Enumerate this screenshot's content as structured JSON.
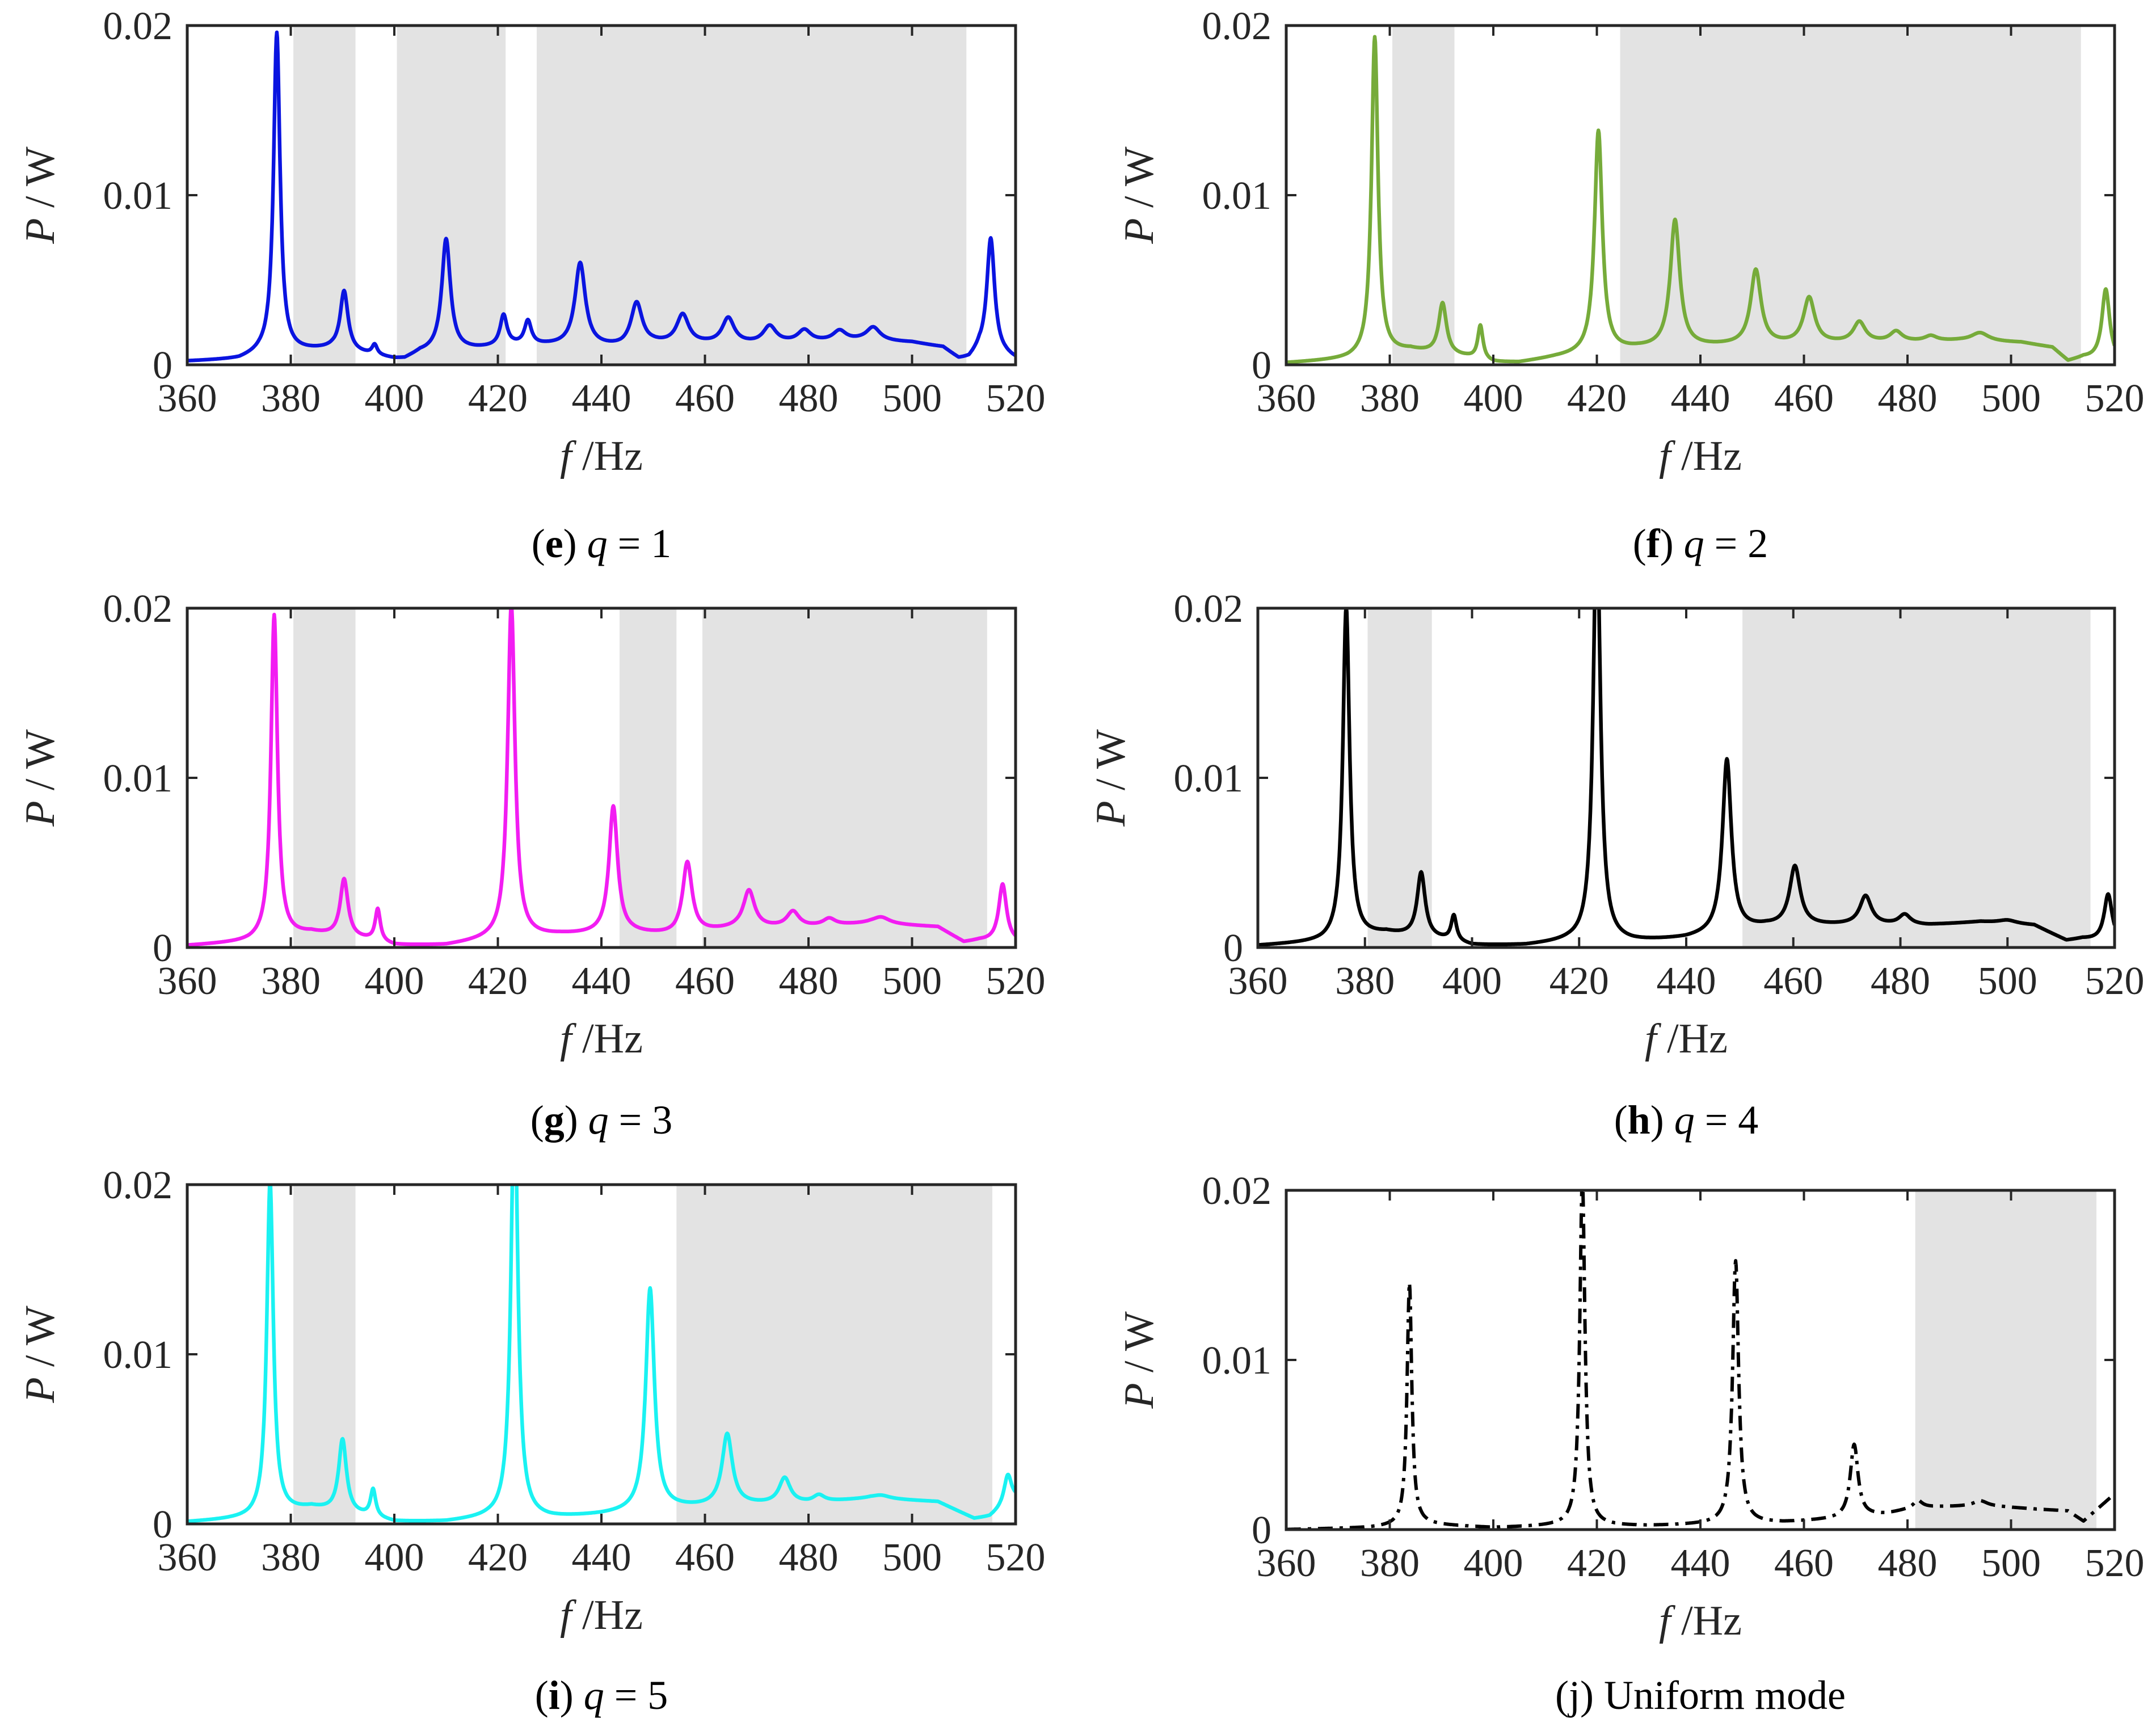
{
  "chart_data": [
    {
      "id": "e",
      "type": "line",
      "caption_letter": "(e)",
      "caption_var": "q",
      "caption_rest": " = 1",
      "color": "#0a14e0",
      "dash": "solid",
      "xlabel_var": "f",
      "xlabel_unit": " /Hz",
      "ylabel_var": "P",
      "ylabel_unit": " / W",
      "xlim": [
        360,
        520
      ],
      "ylim": [
        0,
        0.02
      ],
      "xticks": [
        360,
        380,
        400,
        420,
        440,
        460,
        480,
        500,
        520
      ],
      "xtick_labels": [
        "360",
        "380",
        "400",
        "420",
        "440",
        "460",
        "480",
        "500",
        "520"
      ],
      "yticks": [
        0,
        0.01,
        0.02
      ],
      "ytick_labels": [
        "0",
        "0.01",
        "0.02"
      ],
      "bandgaps": [
        [
          380.5,
          392.5
        ],
        [
          400.5,
          421.5
        ],
        [
          427.5,
          510.5
        ]
      ],
      "base": [
        [
          360,
          0.0002
        ],
        [
          370,
          0.0003
        ],
        [
          374,
          0.0006
        ],
        [
          388,
          0.0009
        ],
        [
          400,
          0.0003
        ],
        [
          402,
          0.0003
        ],
        [
          405,
          0.0007
        ],
        [
          416,
          0.0009
        ],
        [
          423,
          0.0011
        ],
        [
          430,
          0.0011
        ],
        [
          444,
          0.001
        ],
        [
          450,
          0.0012
        ],
        [
          460,
          0.0012
        ],
        [
          470,
          0.0012
        ],
        [
          480,
          0.0013
        ],
        [
          490,
          0.0014
        ],
        [
          500,
          0.0013
        ],
        [
          506,
          0.001
        ],
        [
          509,
          0.0003
        ],
        [
          511,
          0.0003
        ],
        [
          513,
          0.0008
        ],
        [
          518,
          0.0005
        ],
        [
          520,
          0.0003
        ]
      ],
      "peaks": [
        [
          377.3,
          0.0189,
          0.75
        ],
        [
          390.3,
          0.0035,
          0.9
        ],
        [
          396.2,
          0.0006,
          0.6
        ],
        [
          410,
          0.0066,
          1.0
        ],
        [
          421.1,
          0.0018,
          0.8
        ],
        [
          425.8,
          0.0014,
          0.8
        ],
        [
          435.9,
          0.0049,
          1.2
        ],
        [
          446.8,
          0.0025,
          1.3
        ],
        [
          455.7,
          0.0017,
          1.4
        ],
        [
          464.5,
          0.0015,
          1.4
        ],
        [
          472.5,
          0.001,
          1.5
        ],
        [
          479.2,
          0.0007,
          1.5
        ],
        [
          486,
          0.0006,
          1.5
        ],
        [
          492.5,
          0.0008,
          1.6
        ],
        [
          515.2,
          0.0068,
          0.9
        ]
      ]
    },
    {
      "id": "f",
      "type": "line",
      "caption_letter": "(f)",
      "caption_var": "q",
      "caption_rest": " = 2",
      "color": "#76ab3a",
      "dash": "solid",
      "xlabel_var": "f",
      "xlabel_unit": " /Hz",
      "ylabel_var": "P",
      "ylabel_unit": " / W",
      "xlim": [
        360,
        520
      ],
      "ylim": [
        0,
        0.02
      ],
      "xticks": [
        360,
        380,
        400,
        420,
        440,
        460,
        480,
        500,
        520
      ],
      "xtick_labels": [
        "360",
        "380",
        "400",
        "420",
        "440",
        "460",
        "480",
        "500",
        "520"
      ],
      "yticks": [
        0,
        0.01,
        0.02
      ],
      "ytick_labels": [
        "0",
        "0.01",
        "0.02"
      ],
      "bandgaps": [
        [
          380.5,
          392.5
        ],
        [
          424.5,
          513.5
        ]
      ],
      "base": [
        [
          360,
          0.0001
        ],
        [
          372,
          0.0003
        ],
        [
          384,
          0.0008
        ],
        [
          395,
          0.0004
        ],
        [
          400,
          0.0001
        ],
        [
          405,
          0.0001
        ],
        [
          412,
          0.0004
        ],
        [
          428,
          0.0009
        ],
        [
          445,
          0.0011
        ],
        [
          460,
          0.0012
        ],
        [
          475,
          0.0013
        ],
        [
          490,
          0.0014
        ],
        [
          502,
          0.0013
        ],
        [
          508,
          0.001
        ],
        [
          511,
          0.0002
        ],
        [
          514,
          0.0004
        ],
        [
          520,
          0.0002
        ]
      ],
      "peaks": [
        [
          377.1,
          0.0188,
          0.75
        ],
        [
          390.2,
          0.003,
          0.9
        ],
        [
          397.5,
          0.002,
          0.6
        ],
        [
          420.3,
          0.0131,
          0.9
        ],
        [
          435.1,
          0.0075,
          1.1
        ],
        [
          450.7,
          0.0044,
          1.2
        ],
        [
          461,
          0.0027,
          1.3
        ],
        [
          470.7,
          0.0012,
          1.4
        ],
        [
          477.8,
          0.0006,
          1.4
        ],
        [
          484.5,
          0.0003,
          1.4
        ],
        [
          494,
          0.0005,
          2.0
        ],
        [
          518.3,
          0.0042,
          0.9
        ]
      ]
    },
    {
      "id": "g",
      "type": "line",
      "caption_letter": "(g)",
      "caption_var": "q",
      "caption_rest": " = 3",
      "color": "#f21df2",
      "dash": "solid",
      "xlabel_var": "f",
      "xlabel_unit": " /Hz",
      "ylabel_var": "P",
      "ylabel_unit": " / W",
      "xlim": [
        360,
        520
      ],
      "ylim": [
        0,
        0.02
      ],
      "xticks": [
        360,
        380,
        400,
        420,
        440,
        460,
        480,
        500,
        520
      ],
      "xtick_labels": [
        "360",
        "380",
        "400",
        "420",
        "440",
        "460",
        "480",
        "500",
        "520"
      ],
      "yticks": [
        0,
        0.01,
        0.02
      ],
      "ytick_labels": [
        "0",
        "0.01",
        "0.02"
      ],
      "bandgaps": [
        [
          380.5,
          392.5
        ],
        [
          443.5,
          454.5
        ],
        [
          459.5,
          514.5
        ]
      ],
      "base": [
        [
          360,
          0.0001
        ],
        [
          372,
          0.0003
        ],
        [
          384,
          0.0008
        ],
        [
          395,
          0.0004
        ],
        [
          400,
          0.0001
        ],
        [
          410,
          0.0001
        ],
        [
          418,
          0.0004
        ],
        [
          432,
          0.0007
        ],
        [
          446,
          0.0008
        ],
        [
          454,
          0.0007
        ],
        [
          466,
          0.0011
        ],
        [
          480,
          0.0012
        ],
        [
          492,
          0.0014
        ],
        [
          505,
          0.0012
        ],
        [
          510,
          0.0003
        ],
        [
          513,
          0.0004
        ],
        [
          520,
          0.0003
        ]
      ],
      "peaks": [
        [
          376.8,
          0.0191,
          0.75
        ],
        [
          390.3,
          0.0034,
          0.9
        ],
        [
          396.8,
          0.0019,
          0.6
        ],
        [
          422.6,
          0.0197,
          0.85
        ],
        [
          442.3,
          0.0075,
          1.0
        ],
        [
          456.6,
          0.0042,
          1.1
        ],
        [
          468.5,
          0.0022,
          1.3
        ],
        [
          477,
          0.0009,
          1.4
        ],
        [
          484,
          0.0004,
          1.4
        ],
        [
          494,
          0.0004,
          2.0
        ],
        [
          517.5,
          0.0034,
          0.9
        ]
      ]
    },
    {
      "id": "h",
      "type": "line",
      "caption_letter": "(h)",
      "caption_var": "q",
      "caption_rest": " = 4",
      "color": "#000000",
      "dash": "solid",
      "xlabel_var": "f",
      "xlabel_unit": " /Hz",
      "ylabel_var": "P",
      "ylabel_unit": " / W",
      "xlim": [
        360,
        520
      ],
      "ylim": [
        0,
        0.02
      ],
      "xticks": [
        360,
        380,
        400,
        420,
        440,
        460,
        480,
        500,
        520
      ],
      "xtick_labels": [
        "360",
        "380",
        "400",
        "420",
        "440",
        "460",
        "480",
        "500",
        "520"
      ],
      "yticks": [
        0,
        0.01,
        0.02
      ],
      "ytick_labels": [
        "0",
        "0.01",
        "0.02"
      ],
      "bandgaps": [
        [
          380.5,
          392.5
        ],
        [
          450.5,
          515.5
        ]
      ],
      "base": [
        [
          360,
          0.0001
        ],
        [
          372,
          0.0003
        ],
        [
          384,
          0.0008
        ],
        [
          395,
          0.0004
        ],
        [
          400,
          0.0001
        ],
        [
          410,
          0.0001
        ],
        [
          418,
          0.0003
        ],
        [
          430,
          0.0003
        ],
        [
          440,
          0.0005
        ],
        [
          455,
          0.0012
        ],
        [
          470,
          0.0013
        ],
        [
          485,
          0.0013
        ],
        [
          495,
          0.0015
        ],
        [
          505,
          0.0013
        ],
        [
          511,
          0.0004
        ],
        [
          514,
          0.0005
        ],
        [
          520,
          0.0003
        ]
      ],
      "peaks": [
        [
          376.5,
          0.0196,
          0.75
        ],
        [
          390.5,
          0.0038,
          0.9
        ],
        [
          396.6,
          0.0015,
          0.6
        ],
        [
          423.3,
          0.025,
          0.8
        ],
        [
          447.6,
          0.0102,
          1.0
        ],
        [
          460.3,
          0.0035,
          1.2
        ],
        [
          473.5,
          0.0017,
          1.3
        ],
        [
          480.8,
          0.0006,
          1.3
        ],
        [
          500,
          0.0002,
          2.0
        ],
        [
          518.8,
          0.0028,
          0.9
        ]
      ]
    },
    {
      "id": "i",
      "type": "line",
      "caption_letter": "(i)",
      "caption_var": "q",
      "caption_rest": " = 5",
      "color": "#1af2f2",
      "dash": "solid",
      "xlabel_var": "f",
      "xlabel_unit": " /Hz",
      "ylabel_var": "P",
      "ylabel_unit": " / W",
      "xlim": [
        360,
        520
      ],
      "ylim": [
        0,
        0.02
      ],
      "xticks": [
        360,
        380,
        400,
        420,
        440,
        460,
        480,
        500,
        520
      ],
      "xtick_labels": [
        "360",
        "380",
        "400",
        "420",
        "440",
        "460",
        "480",
        "500",
        "520"
      ],
      "yticks": [
        0,
        0.01,
        0.02
      ],
      "ytick_labels": [
        "0",
        "0.01",
        "0.02"
      ],
      "bandgaps": [
        [
          380.5,
          392.5
        ],
        [
          454.5,
          515.5
        ]
      ],
      "base": [
        [
          360,
          0.0001
        ],
        [
          372,
          0.0003
        ],
        [
          384,
          0.0009
        ],
        [
          395,
          0.0004
        ],
        [
          400,
          0.0001
        ],
        [
          410,
          0.0001
        ],
        [
          418,
          0.0003
        ],
        [
          430,
          0.0003
        ],
        [
          440,
          0.0005
        ],
        [
          455,
          0.0009
        ],
        [
          468,
          0.0011
        ],
        [
          480,
          0.0012
        ],
        [
          492,
          0.0015
        ],
        [
          505,
          0.0013
        ],
        [
          512,
          0.0003
        ],
        [
          515,
          0.0004
        ],
        [
          520,
          0.0014
        ]
      ],
      "peaks": [
        [
          376,
          0.0197,
          0.75
        ],
        [
          390,
          0.0043,
          0.9
        ],
        [
          395.9,
          0.0016,
          0.6
        ],
        [
          423.2,
          0.025,
          0.8
        ],
        [
          449.4,
          0.0131,
          1.0
        ],
        [
          464.3,
          0.0042,
          1.2
        ],
        [
          475.4,
          0.0015,
          1.3
        ],
        [
          482,
          0.0004,
          1.3
        ],
        [
          494,
          0.0002,
          2.0
        ],
        [
          518.5,
          0.0018,
          0.9
        ]
      ]
    },
    {
      "id": "j",
      "type": "line",
      "caption_letter": "(j)",
      "caption_var": "",
      "caption_rest": " Uniform mode",
      "color": "#000000",
      "dash": "dashdot",
      "xlabel_var": "f",
      "xlabel_unit": " /Hz",
      "ylabel_var": "P",
      "ylabel_unit": " / W",
      "xlim": [
        360,
        520
      ],
      "ylim": [
        0,
        0.02
      ],
      "xticks": [
        360,
        380,
        400,
        420,
        440,
        460,
        480,
        500,
        520
      ],
      "xtick_labels": [
        "360",
        "380",
        "400",
        "420",
        "440",
        "460",
        "480",
        "500",
        "520"
      ],
      "yticks": [
        0,
        0.01,
        0.02
      ],
      "ytick_labels": [
        "0",
        "0.01",
        "0.02"
      ],
      "bandgaps": [
        [
          481.5,
          516.5
        ]
      ],
      "base": [
        [
          360,
          0
        ],
        [
          376,
          0.0001
        ],
        [
          382,
          0.0002
        ],
        [
          386,
          0.0003
        ],
        [
          400,
          0.0001
        ],
        [
          412,
          0.0002
        ],
        [
          430,
          0.0002
        ],
        [
          442,
          0.0003
        ],
        [
          456,
          0.0004
        ],
        [
          466,
          0.0006
        ],
        [
          476,
          0.0009
        ],
        [
          482,
          0.0013
        ],
        [
          495,
          0.0014
        ],
        [
          505,
          0.0012
        ],
        [
          511,
          0.0011
        ],
        [
          514,
          0.0005
        ],
        [
          520,
          0.0021
        ]
      ],
      "peaks": [
        [
          383.8,
          0.0143,
          0.55
        ],
        [
          417.2,
          0.0205,
          0.6
        ],
        [
          446.8,
          0.0155,
          0.7
        ],
        [
          469.7,
          0.0043,
          0.9
        ],
        [
          482,
          0.0004,
          1.0
        ],
        [
          494,
          0.0003,
          1.5
        ]
      ]
    }
  ]
}
